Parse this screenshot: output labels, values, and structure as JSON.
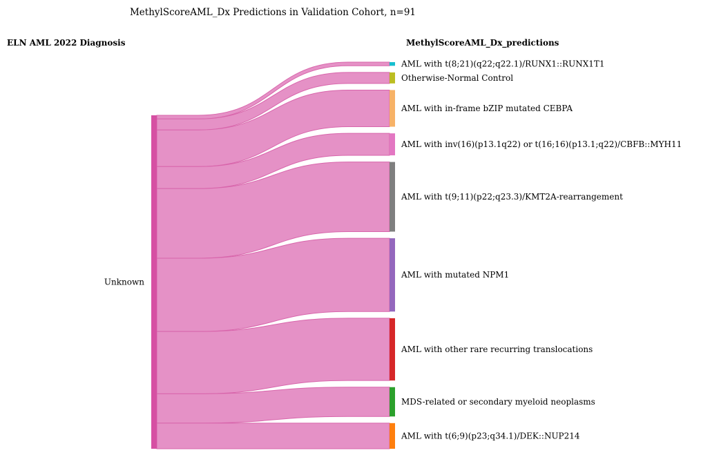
{
  "title": "MethylScoreAML_Dx Predictions in Validation Cohort, n=91",
  "left_header": "ELN AML 2022 Diagnosis",
  "right_header": "MethylScoreAML_Dx_predictions",
  "colors": {
    "link_fill": "#e591c6",
    "link_stroke": "#d865ab",
    "source_node": "#d650a3"
  },
  "chart_data": {
    "type": "sankey",
    "source": {
      "label": "Unknown",
      "total": 91
    },
    "targets": [
      {
        "label": "AML with t(8;21)(q22;q22.1)/RUNX1::RUNX1T1",
        "value": 1,
        "color": "#17becf"
      },
      {
        "label": "Otherwise-Normal Control",
        "value": 3,
        "color": "#bcbd22"
      },
      {
        "label": "AML with in-frame bZIP mutated CEBPA",
        "value": 10,
        "color": "#f7b267"
      },
      {
        "label": "AML with inv(16)(p13.1q22) or t(16;16)(p13.1;q22)/CBFB::MYH11",
        "value": 6,
        "color": "#e377c2"
      },
      {
        "label": "AML with t(9;11)(p22;q23.3)/KMT2A-rearrangement",
        "value": 19,
        "color": "#7f7f7f"
      },
      {
        "label": "AML with mutated NPM1",
        "value": 20,
        "color": "#9467bd"
      },
      {
        "label": "AML with other rare recurring translocations",
        "value": 17,
        "color": "#d62728"
      },
      {
        "label": "MDS-related or secondary myeloid neoplasms",
        "value": 8,
        "color": "#2ca02c"
      },
      {
        "label": "AML with t(6;9)(p23;q34.1)/DEK::NUP214",
        "value": 7,
        "color": "#ff7f0e"
      }
    ]
  }
}
